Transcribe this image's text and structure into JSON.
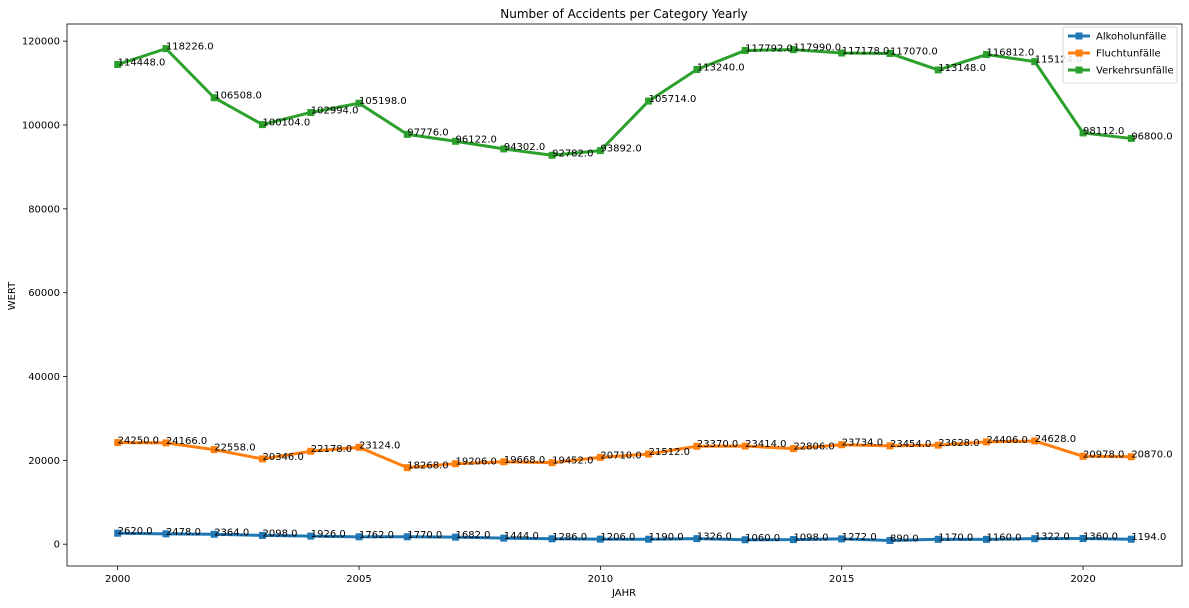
{
  "chart_data": {
    "type": "line",
    "title": "Number of Accidents per Category Yearly",
    "xlabel": "JAHR",
    "ylabel": "WERT",
    "x": [
      2000,
      2001,
      2002,
      2003,
      2004,
      2005,
      2006,
      2007,
      2008,
      2009,
      2010,
      2011,
      2012,
      2013,
      2014,
      2015,
      2016,
      2017,
      2018,
      2019,
      2020,
      2021
    ],
    "xlim": [
      1998.95,
      2022.05
    ],
    "ylim": [
      -5200,
      124100
    ],
    "xticks": [
      2000,
      2005,
      2010,
      2015,
      2020
    ],
    "xtick_labels": [
      "2000",
      "2005",
      "2010",
      "2015",
      "2020"
    ],
    "yticks": [
      0,
      20000,
      40000,
      60000,
      80000,
      100000,
      120000
    ],
    "ytick_labels": [
      "0",
      "20000",
      "40000",
      "60000",
      "80000",
      "100000",
      "120000"
    ],
    "grid": false,
    "legend_position": "top-right",
    "series": [
      {
        "name": "Alkoholunfälle",
        "color": "#1f77b4",
        "marker": "square",
        "values": [
          2620,
          2478,
          2364,
          2098,
          1926,
          1762,
          1770,
          1682,
          1444,
          1286,
          1206,
          1190,
          1326,
          1060,
          1098,
          1272,
          890,
          1170,
          1160,
          1322,
          1360,
          1194
        ],
        "labels": [
          "2620.0",
          "2478.0",
          "2364.0",
          "2098.0",
          "1926.0",
          "1762.0",
          "1770.0",
          "1682.0",
          "1444.0",
          "1286.0",
          "1206.0",
          "1190.0",
          "1326.0",
          "1060.0",
          "1098.0",
          "1272.0",
          "890.0",
          "1170.0",
          "1160.0",
          "1322.0",
          "1360.0",
          "1194.0"
        ]
      },
      {
        "name": "Fluchtunfälle",
        "color": "#ff7f0e",
        "marker": "square",
        "values": [
          24250,
          24166,
          22558,
          20346,
          22178,
          23124,
          18268,
          19206,
          19668,
          19452,
          20710,
          21512,
          23370,
          23414,
          22806,
          23734,
          23454,
          23628,
          24406,
          24628,
          20978,
          20870
        ],
        "labels": [
          "24250.0",
          "24166.0",
          "22558.0",
          "20346.0",
          "22178.0",
          "23124.0",
          "18268.0",
          "19206.0",
          "19668.0",
          "19452.0",
          "20710.0",
          "21512.0",
          "23370.0",
          "23414.0",
          "22806.0",
          "23734.0",
          "23454.0",
          "23628.0",
          "24406.0",
          "24628.0",
          "20978.0",
          "20870.0"
        ]
      },
      {
        "name": "Verkehrsunfälle",
        "color": "#2ca02c",
        "marker": "square",
        "values": [
          114448,
          118226,
          106508,
          100104,
          102994,
          105198,
          97776,
          96122,
          94302,
          92782,
          93892,
          105714,
          113240,
          117792,
          117990,
          117178,
          117070,
          113148,
          116812,
          115124,
          98112,
          96800
        ],
        "labels": [
          "114448.0",
          "118226.0",
          "106508.0",
          "100104.0",
          "102994.0",
          "105198.0",
          "97776.0",
          "96122.0",
          "94302.0",
          "92782.0",
          "93892.0",
          "105714.0",
          "113240.0",
          "117792.0",
          "117990.0",
          "117178.0",
          "117070.0",
          "113148.0",
          "116812.0",
          "115124.0",
          "98112.0",
          "96800.0"
        ]
      }
    ]
  }
}
